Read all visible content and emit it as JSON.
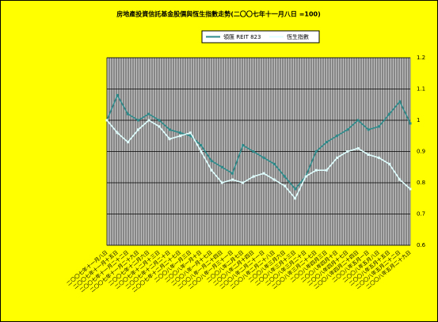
{
  "chart_data": {
    "type": "line",
    "title": "房地產投資信託基金股價與恆生指數走勢(二〇〇七年十一月八日 =100)",
    "categories": [
      "二〇〇七年十一月八日",
      "二〇〇七年十一月十五日",
      "二〇〇七年十一月二十二日",
      "二〇〇七年十一月二十九日",
      "二〇〇七年十二月六日",
      "二〇〇七年十二月十三日",
      "二〇〇七年十二月二十日",
      "二〇〇七年十二月二十七日",
      "二〇〇八年一月三日",
      "二〇〇八年一月十日",
      "二〇〇八年一月十七日",
      "二〇〇八年一月二十四日",
      "二〇〇八年一月三十一日",
      "二〇〇八年二月七日",
      "二〇〇八年二月十四日",
      "二〇〇八年二月二十一日",
      "二〇〇八年二月二十八日",
      "二〇〇八年三月六日",
      "二〇〇八年三月十三日",
      "二〇〇八年三月二十日",
      "二〇〇八年三月二十七日",
      "二〇〇八年四月三日",
      "二〇〇八年四月十日",
      "二〇〇八年四月十七日",
      "二〇〇八年四月二十四日",
      "二〇〇八年五月一日",
      "二〇〇八年五月八日",
      "二〇〇八年五月十五日",
      "二〇〇八年五月二十二日",
      "二〇〇八年五月二十九日"
    ],
    "series": [
      {
        "name": "領匯 REIT 823",
        "color": "#2e8b8b",
        "values": [
          1.0,
          1.08,
          1.02,
          1.0,
          1.02,
          1.0,
          0.97,
          0.96,
          0.95,
          0.92,
          0.87,
          0.85,
          0.83,
          0.92,
          0.9,
          0.88,
          0.86,
          0.82,
          0.78,
          0.82,
          0.9,
          0.93,
          0.95,
          0.97,
          1.0,
          0.97,
          0.98,
          1.02,
          1.06,
          0.99
        ]
      },
      {
        "name": "恆生指數",
        "color": "#e0ffff",
        "values": [
          1.0,
          0.96,
          0.93,
          0.97,
          1.0,
          0.98,
          0.94,
          0.95,
          0.96,
          0.9,
          0.84,
          0.8,
          0.81,
          0.8,
          0.82,
          0.83,
          0.81,
          0.79,
          0.75,
          0.82,
          0.84,
          0.84,
          0.88,
          0.9,
          0.91,
          0.89,
          0.88,
          0.86,
          0.81,
          0.78
        ]
      }
    ],
    "ylim": [
      0.6,
      1.2
    ],
    "yticks": [
      0.6,
      0.7,
      0.8,
      0.9,
      1,
      1.1,
      1.2
    ],
    "grid": true
  }
}
